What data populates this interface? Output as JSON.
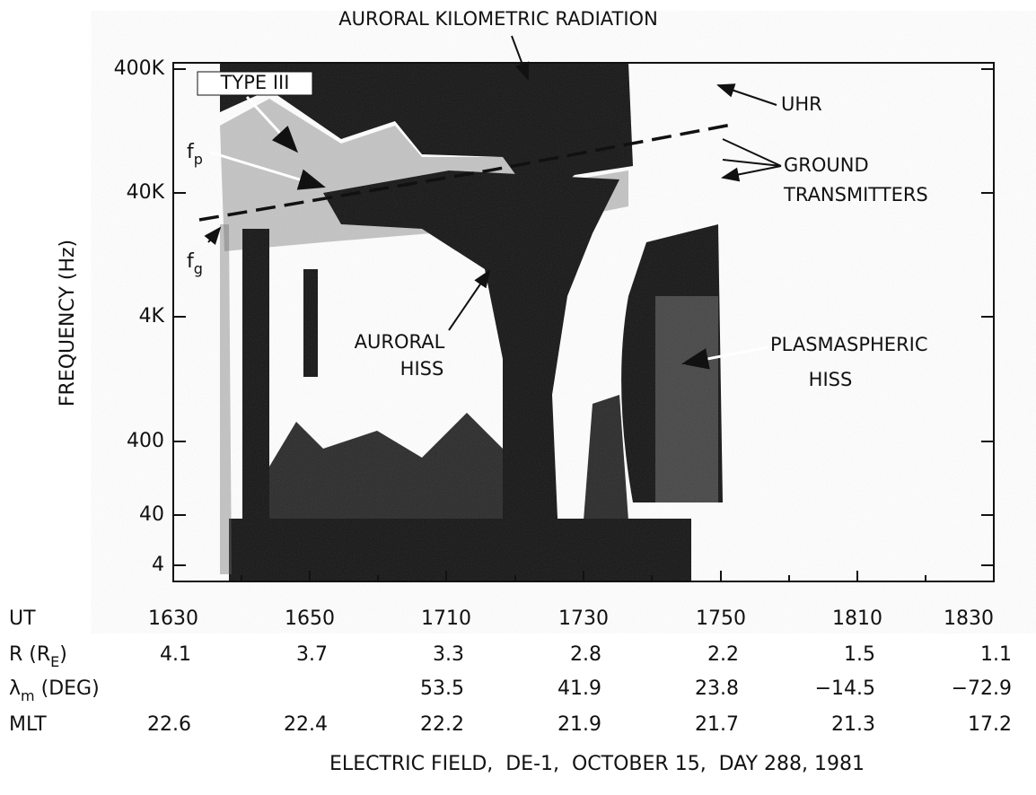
{
  "figure": {
    "annotations": [
      "AURORAL KILOMETRIC RADIATION",
      "TYPE III",
      "UHR",
      "GROUND",
      "TRANSMITTERS",
      "AURORAL",
      "HISS",
      "PLASMASPHERIC",
      "HISS"
    ],
    "fp": {
      "text": "f",
      "sub": "p"
    },
    "fg": {
      "text": "f",
      "sub": "g"
    },
    "y_axis": {
      "label": "FREQUENCY (Hz)",
      "ticks": [
        "400K",
        "40K",
        "4K",
        "400",
        "40",
        "4"
      ]
    },
    "table": {
      "row_labels": [
        {
          "text": "UT",
          "sub": null,
          "end": null
        },
        {
          "text": "R (R",
          "sub": "E",
          "end": ")"
        },
        {
          "text": "λ",
          "sub": "m",
          "end": " (DEG)"
        },
        {
          "text": "MLT",
          "sub": null,
          "end": null
        }
      ],
      "rows": [
        [
          "1630",
          "1650",
          "1710",
          "1730",
          "1750",
          "1810",
          "1830"
        ],
        [
          "4.1",
          "3.7",
          "3.3",
          "2.8",
          "2.2",
          "1.5",
          "1.1"
        ],
        [
          null,
          null,
          "53.5",
          "41.9",
          "23.8",
          "−14.5",
          "−72.9"
        ],
        [
          "22.6",
          "22.4",
          "22.2",
          "21.9",
          "21.7",
          "21.3",
          "17.2"
        ]
      ]
    },
    "caption": "ELECTRIC FIELD,  DE-1,  OCTOBER 15,  DAY 288, 1981"
  }
}
